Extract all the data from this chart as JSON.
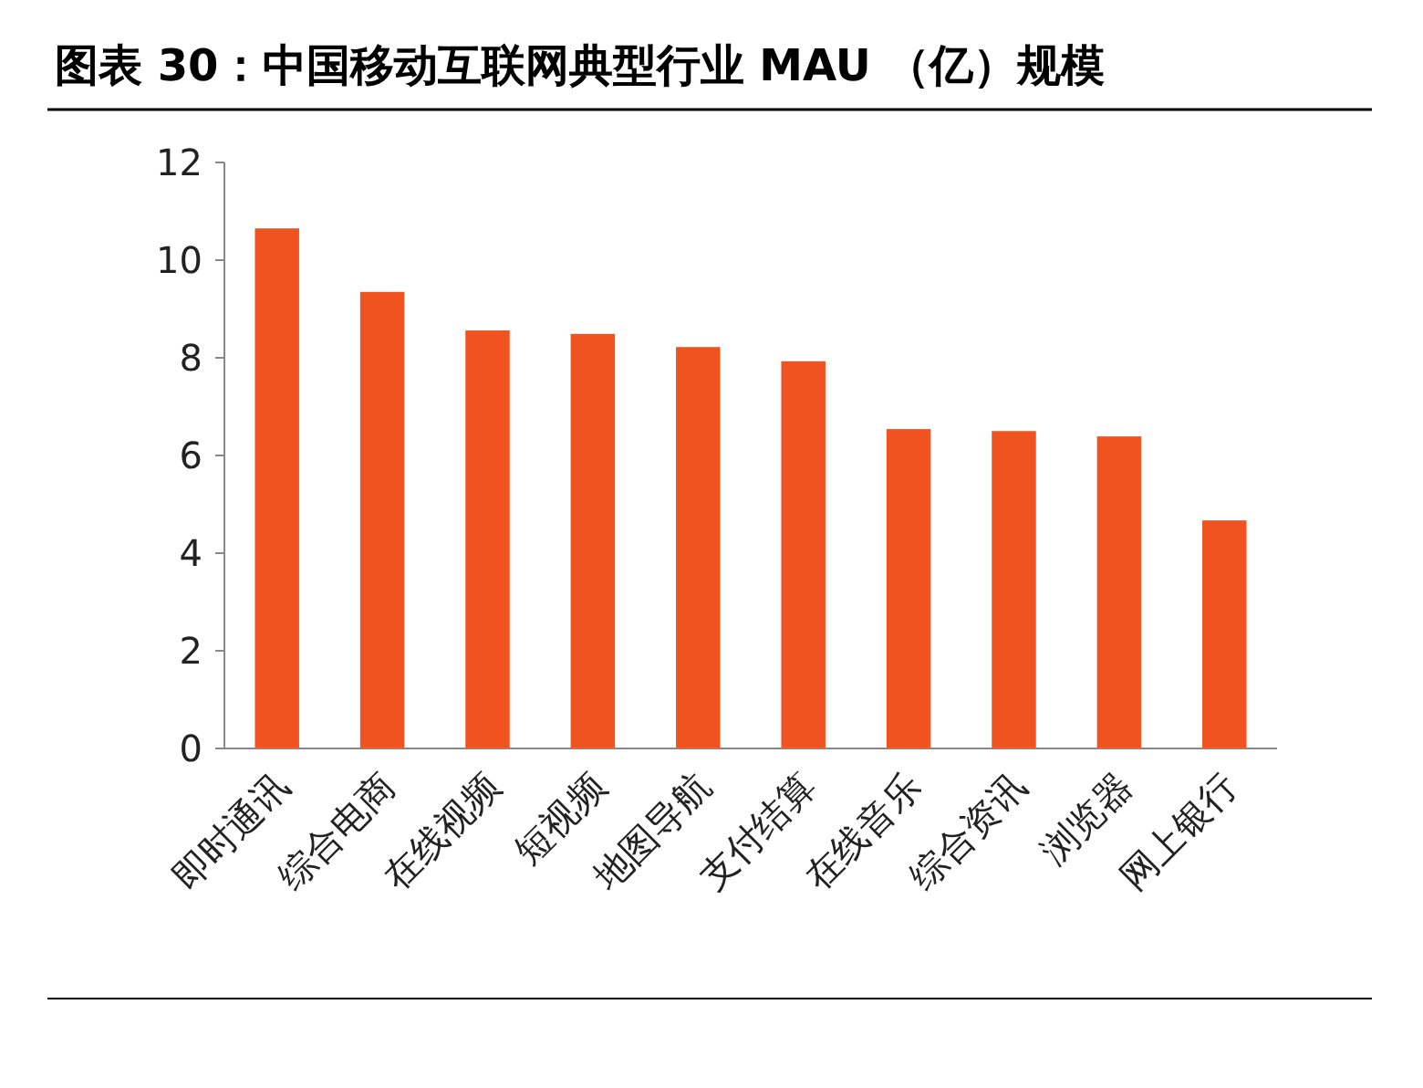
{
  "chart_data": {
    "type": "bar",
    "title": "图表 30：中国移动互联网典型行业 MAU （亿）规模",
    "categories": [
      "即时通讯",
      "综合电商",
      "在线视频",
      "短视频",
      "地图导航",
      "支付结算",
      "在线音乐",
      "综合资讯",
      "浏览器",
      "网上银行"
    ],
    "values": [
      10.65,
      9.35,
      8.56,
      8.49,
      8.22,
      7.93,
      6.54,
      6.5,
      6.39,
      4.67
    ],
    "color": "#f0531f",
    "ylim": [
      0,
      12
    ],
    "yticks": [
      0,
      2,
      4,
      6,
      8,
      10,
      12
    ]
  }
}
